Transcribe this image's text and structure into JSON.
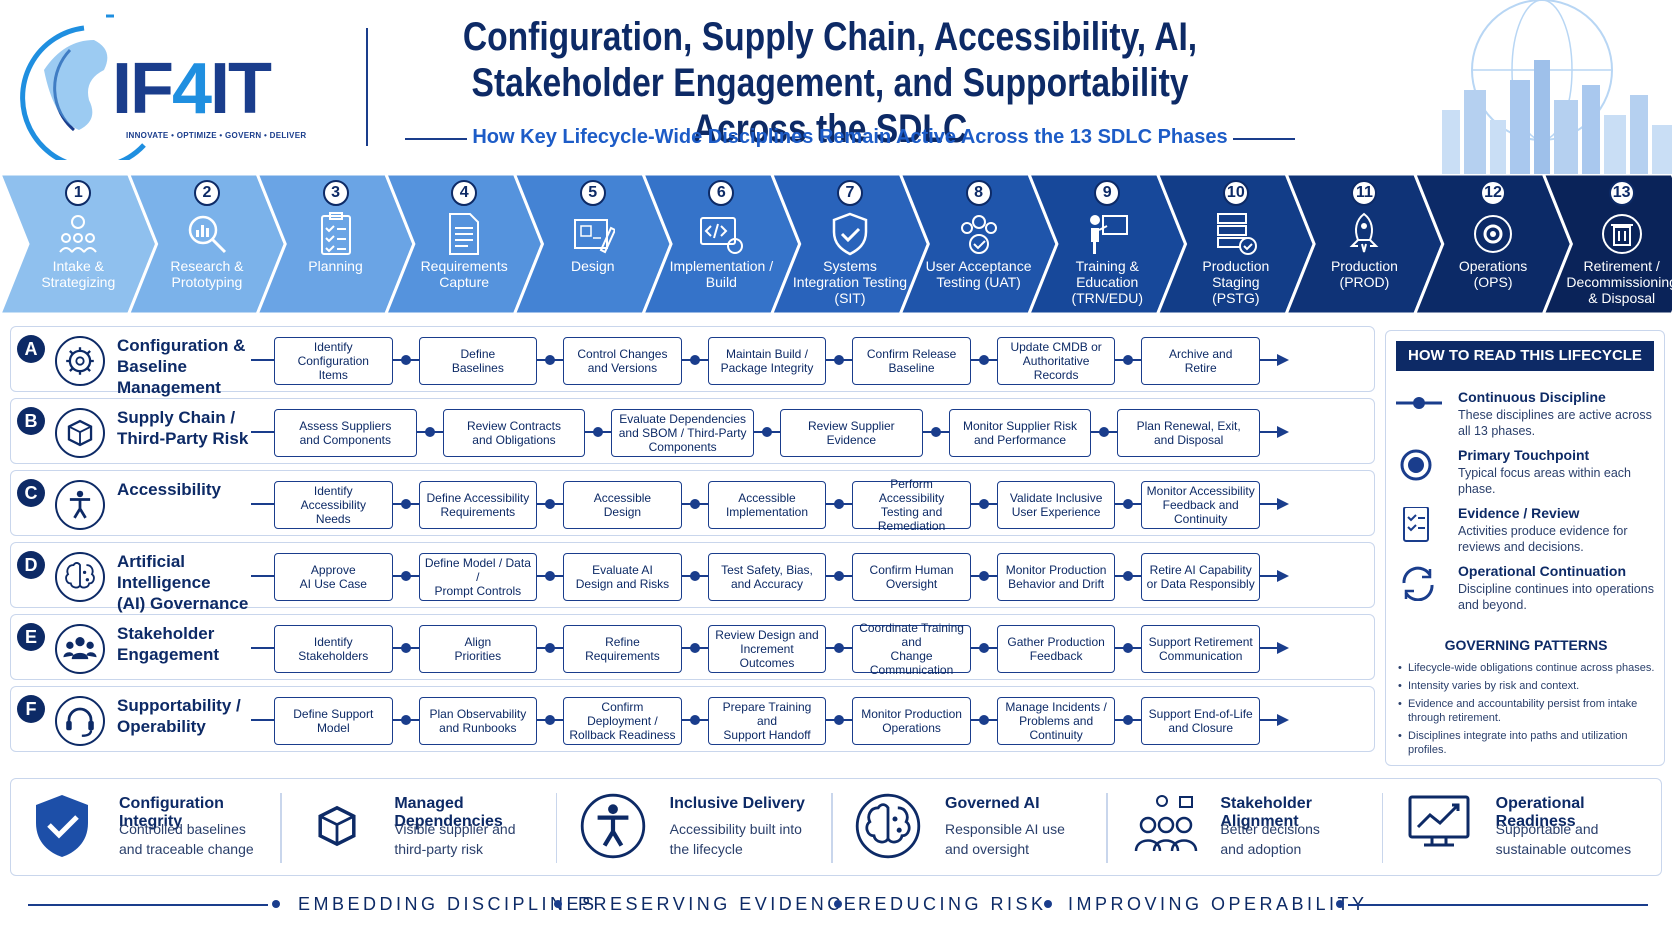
{
  "header": {
    "logo_main": "IF",
    "logo_four": "4",
    "logo_end": "IT",
    "logo_tagline": "INNOVATE • OPTIMIZE • GOVERN • DELIVER",
    "title_line1": "Configuration, Supply Chain, Accessibility, AI,",
    "title_line2": "Stakeholder Engagement, and Supportability Across the SDLC",
    "subtitle": "How Key Lifecycle-Wide Disciplines Remain Active Across the 13 SDLC Phases"
  },
  "phases": [
    {
      "num": "1",
      "label": "Intake &\nStrategizing",
      "icon": "people-lightbulb-icon",
      "color": "#8fc0ee"
    },
    {
      "num": "2",
      "label": "Research &\nPrototyping",
      "icon": "magnifier-chart-icon",
      "color": "#7bb2ea"
    },
    {
      "num": "3",
      "label": "Planning",
      "icon": "clipboard-checklist-icon",
      "color": "#6aa4e5"
    },
    {
      "num": "4",
      "label": "Requirements\nCapture",
      "icon": "document-icon",
      "color": "#5593dd"
    },
    {
      "num": "5",
      "label": "Design",
      "icon": "blueprint-pencil-icon",
      "color": "#4483d4"
    },
    {
      "num": "6",
      "label": "Implementation /\nBuild",
      "icon": "code-gear-icon",
      "color": "#3573c9"
    },
    {
      "num": "7",
      "label": "Systems\nIntegration Testing\n(SIT)",
      "icon": "shield-check-icon",
      "color": "#2963bb"
    },
    {
      "num": "8",
      "label": "User Acceptance\nTesting (UAT)",
      "icon": "users-check-icon",
      "color": "#1f55ab"
    },
    {
      "num": "9",
      "label": "Training &\nEducation\n(TRN/EDU)",
      "icon": "presenter-board-icon",
      "color": "#17489a"
    },
    {
      "num": "10",
      "label": "Production\nStaging\n(PSTG)",
      "icon": "server-check-icon",
      "color": "#123d88"
    },
    {
      "num": "11",
      "label": "Production\n(PROD)",
      "icon": "rocket-icon",
      "color": "#0f3377"
    },
    {
      "num": "12",
      "label": "Operations\n(OPS)",
      "icon": "gear-cycle-icon",
      "color": "#0c2a67"
    },
    {
      "num": "13",
      "label": "Retirement /\nDecommissioning\n& Disposal",
      "icon": "trash-icon",
      "color": "#0a2359"
    }
  ],
  "rows": [
    {
      "letter": "A",
      "label": "Configuration &\nBaseline Management",
      "icon": "gear-icon",
      "items": [
        "Identify\nConfiguration\nItems",
        "Define\nBaselines",
        "Control Changes\nand Versions",
        "Maintain Build /\nPackage Integrity",
        "Confirm Release\nBaseline",
        "Update CMDB or\nAuthoritative Records",
        "Archive and\nRetire"
      ]
    },
    {
      "letter": "B",
      "label": "Supply Chain /\nThird-Party Risk",
      "icon": "package-icon",
      "items": [
        "Assess Suppliers\nand Components",
        "Review Contracts\nand Obligations",
        "Evaluate Dependencies\nand SBOM / Third-Party\nComponents",
        "Review Supplier\nEvidence",
        "Monitor Supplier Risk\nand Performance",
        "Plan Renewal, Exit,\nand Disposal"
      ]
    },
    {
      "letter": "C",
      "label": "Accessibility",
      "icon": "accessibility-icon",
      "items": [
        "Identify\nAccessibility\nNeeds",
        "Define Accessibility\nRequirements",
        "Accessible\nDesign",
        "Accessible\nImplementation",
        "Perform Accessibility\nTesting and\nRemediation",
        "Validate Inclusive\nUser Experience",
        "Monitor Accessibility\nFeedback and\nContinuity"
      ]
    },
    {
      "letter": "D",
      "label": "Artificial Intelligence\n(AI) Governance",
      "icon": "ai-brain-icon",
      "items": [
        "Approve\nAI Use Case",
        "Define Model / Data /\nPrompt Controls",
        "Evaluate AI\nDesign and Risks",
        "Test Safety, Bias,\nand Accuracy",
        "Confirm Human\nOversight",
        "Monitor Production\nBehavior and Drift",
        "Retire AI Capability\nor Data Responsibly"
      ]
    },
    {
      "letter": "E",
      "label": "Stakeholder\nEngagement",
      "icon": "group-icon",
      "items": [
        "Identify\nStakeholders",
        "Align\nPriorities",
        "Refine\nRequirements",
        "Review Design and\nIncrement Outcomes",
        "Coordinate Training and\nChange Communication",
        "Gather Production\nFeedback",
        "Support Retirement\nCommunication"
      ]
    },
    {
      "letter": "F",
      "label": "Supportability /\nOperability",
      "icon": "headset-icon",
      "items": [
        "Define Support\nModel",
        "Plan Observability\nand Runbooks",
        "Confirm Deployment /\nRollback Readiness",
        "Prepare Training and\nSupport Handoff",
        "Monitor Production\nOperations",
        "Manage Incidents /\nProblems and\nContinuity",
        "Support End-of-Life\nand Closure"
      ]
    }
  ],
  "legend": {
    "title": "HOW TO READ THIS LIFECYCLE VIEW",
    "items": [
      {
        "title": "Continuous Discipline",
        "desc": "These disciplines are active across all 13 phases.",
        "icon": "line-dot-icon"
      },
      {
        "title": "Primary Touchpoint",
        "desc": "Typical focus areas within each phase.",
        "icon": "target-circle-icon"
      },
      {
        "title": "Evidence / Review",
        "desc": "Activities produce evidence for reviews and decisions.",
        "icon": "checklist-icon"
      },
      {
        "title": "Operational Continuation",
        "desc": "Discipline continues into operations and beyond.",
        "icon": "cycle-arrows-icon"
      }
    ],
    "patterns_title": "GOVERNING PATTERNS",
    "patterns": [
      "Lifecycle-wide obligations continue across phases.",
      "Intensity varies by risk and context.",
      "Evidence and accountability persist from intake through retirement.",
      "Disciplines integrate into paths and utilization profiles."
    ]
  },
  "outcomes": [
    {
      "title": "Configuration Integrity",
      "desc": "Controlled baselines\nand traceable change",
      "icon": "shield-check-icon"
    },
    {
      "title": "Managed Dependencies",
      "desc": "Visible supplier and\nthird-party risk",
      "icon": "package-icon"
    },
    {
      "title": "Inclusive Delivery",
      "desc": "Accessibility built into\nthe lifecycle",
      "icon": "accessibility-icon"
    },
    {
      "title": "Governed AI",
      "desc": "Responsible AI use\nand oversight",
      "icon": "ai-brain-icon"
    },
    {
      "title": "Stakeholder Alignment",
      "desc": "Better decisions\nand adoption",
      "icon": "stakeholders-icon"
    },
    {
      "title": "Operational Readiness",
      "desc": "Supportable and\nsustainable outcomes",
      "icon": "monitor-chart-icon"
    }
  ],
  "footer": [
    "EMBEDDING DISCIPLINES",
    "PRESERVING EVIDENCE",
    "REDUCING RISK",
    "IMPROVING OPERABILITY"
  ],
  "colors": {
    "navy": "#0d2a66",
    "accent": "#1d5cc7",
    "border": "#c9d6ec"
  }
}
